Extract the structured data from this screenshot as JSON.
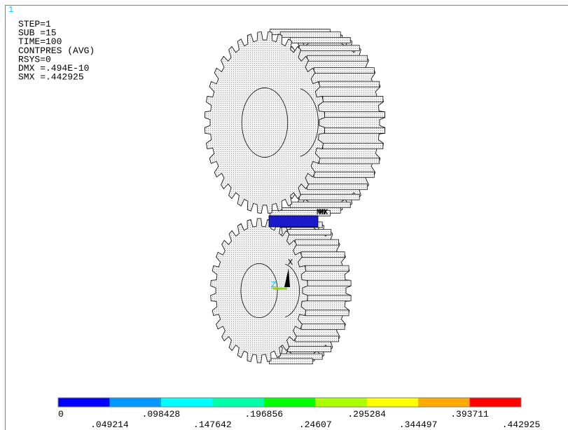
{
  "viewport_number": "1",
  "info": [
    "STEP=1",
    "SUB =15",
    "TIME=100",
    "CONTPRES (AVG)",
    "RSYS=0",
    "DMX =.494E-10",
    "SMX =.442925"
  ],
  "markers": {
    "min": "MN",
    "max": "MX",
    "x_axis": "X",
    "z_axis": "Z"
  },
  "legend": {
    "labels": [
      "0",
      ".049214",
      ".098428",
      ".147642",
      ".196856",
      ".24607",
      ".295284",
      ".344497",
      ".393711",
      ".442925"
    ],
    "colors": [
      "#0000ff",
      "#0099ff",
      "#00ffff",
      "#00ffaa",
      "#00ff00",
      "#aaff00",
      "#ffff00",
      "#ffaa00",
      "#ff0000"
    ]
  }
}
